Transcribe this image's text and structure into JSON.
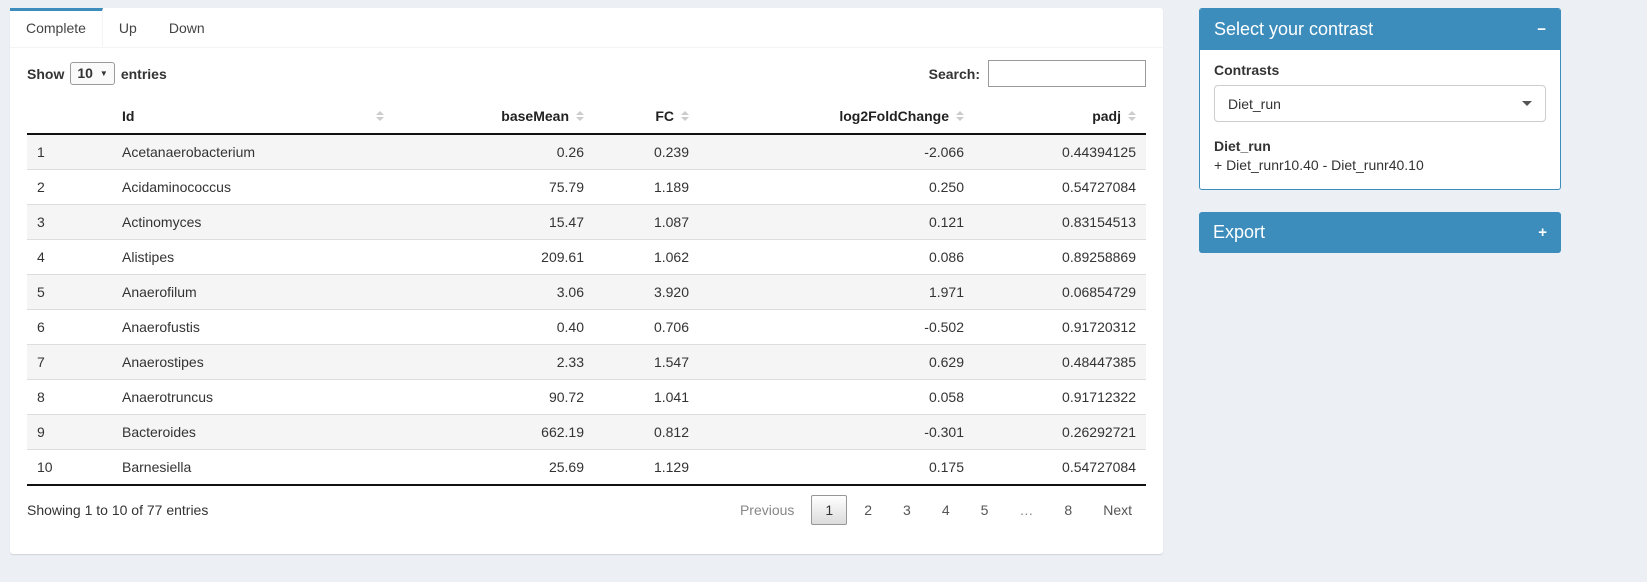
{
  "tabs": {
    "items": [
      {
        "label": "Complete",
        "active": true
      },
      {
        "label": "Up",
        "active": false
      },
      {
        "label": "Down",
        "active": false
      }
    ]
  },
  "table_controls": {
    "show_label": "Show",
    "page_length": "10",
    "entries_label": "entries",
    "search_label": "Search:",
    "search_value": ""
  },
  "table": {
    "columns": {
      "id": "Id",
      "basemean": "baseMean",
      "fc": "FC",
      "log2fc": "log2FoldChange",
      "padj": "padj"
    },
    "rows": [
      {
        "index": "1",
        "id": "Acetanaerobacterium",
        "basemean": "0.26",
        "fc": "0.239",
        "log2fc": "-2.066",
        "padj": "0.44394125"
      },
      {
        "index": "2",
        "id": "Acidaminococcus",
        "basemean": "75.79",
        "fc": "1.189",
        "log2fc": "0.250",
        "padj": "0.54727084"
      },
      {
        "index": "3",
        "id": "Actinomyces",
        "basemean": "15.47",
        "fc": "1.087",
        "log2fc": "0.121",
        "padj": "0.83154513"
      },
      {
        "index": "4",
        "id": "Alistipes",
        "basemean": "209.61",
        "fc": "1.062",
        "log2fc": "0.086",
        "padj": "0.89258869"
      },
      {
        "index": "5",
        "id": "Anaerofilum",
        "basemean": "3.06",
        "fc": "3.920",
        "log2fc": "1.971",
        "padj": "0.06854729"
      },
      {
        "index": "6",
        "id": "Anaerofustis",
        "basemean": "0.40",
        "fc": "0.706",
        "log2fc": "-0.502",
        "padj": "0.91720312"
      },
      {
        "index": "7",
        "id": "Anaerostipes",
        "basemean": "2.33",
        "fc": "1.547",
        "log2fc": "0.629",
        "padj": "0.48447385"
      },
      {
        "index": "8",
        "id": "Anaerotruncus",
        "basemean": "90.72",
        "fc": "1.041",
        "log2fc": "0.058",
        "padj": "0.91712322"
      },
      {
        "index": "9",
        "id": "Bacteroides",
        "basemean": "662.19",
        "fc": "0.812",
        "log2fc": "-0.301",
        "padj": "0.26292721"
      },
      {
        "index": "10",
        "id": "Barnesiella",
        "basemean": "25.69",
        "fc": "1.129",
        "log2fc": "0.175",
        "padj": "0.54727084"
      }
    ]
  },
  "table_footer": {
    "info": "Showing 1 to 10 of 77 entries",
    "pages": [
      {
        "label": "Previous",
        "state": "disabled"
      },
      {
        "label": "1",
        "state": "current"
      },
      {
        "label": "2",
        "state": "normal"
      },
      {
        "label": "3",
        "state": "normal"
      },
      {
        "label": "4",
        "state": "normal"
      },
      {
        "label": "5",
        "state": "normal"
      },
      {
        "label": "…",
        "state": "disabled"
      },
      {
        "label": "8",
        "state": "normal"
      },
      {
        "label": "Next",
        "state": "normal"
      }
    ]
  },
  "contrast_panel": {
    "title": "Select your contrast",
    "collapse_icon": "−",
    "contrasts_label": "Contrasts",
    "selected_contrast": "Diet_run",
    "contrast_name": "Diet_run",
    "contrast_formula": "+ Diet_runr10.40 - Diet_runr40.10"
  },
  "export_panel": {
    "title": "Export",
    "expand_icon": "+"
  },
  "colors": {
    "primary_blue": "#3c8dbc",
    "page_background": "#ecf0f5",
    "row_stripe": "#f5f5f5"
  }
}
